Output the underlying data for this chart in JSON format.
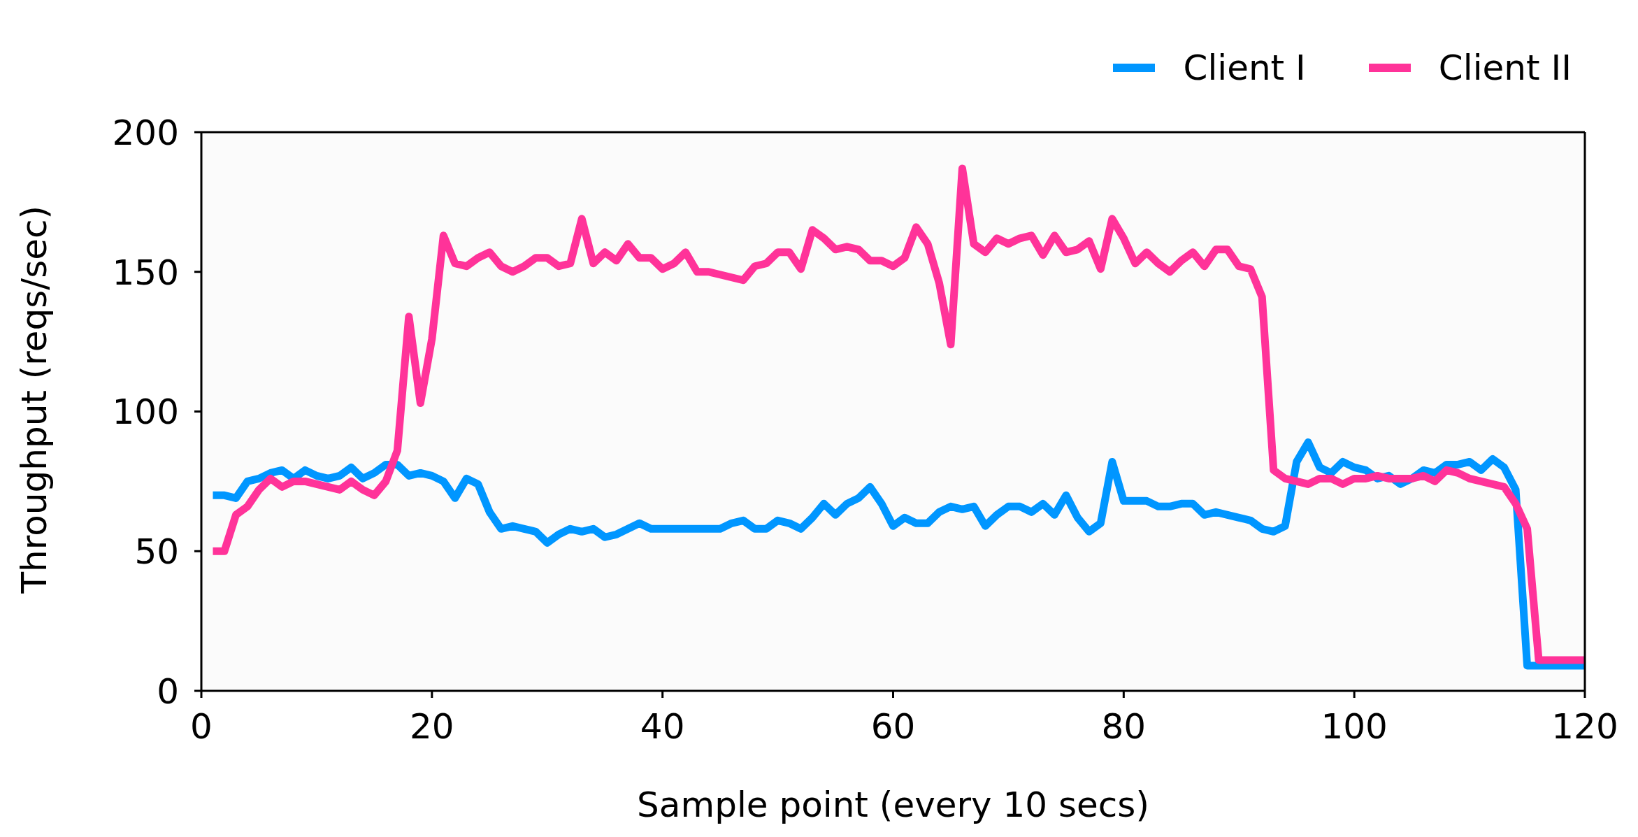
{
  "chart_data": {
    "type": "line",
    "xlabel": "Sample point (every 10 secs)",
    "ylabel": "Throughput (reqs/sec)",
    "x": [
      1,
      2,
      3,
      4,
      5,
      6,
      7,
      8,
      9,
      10,
      11,
      12,
      13,
      14,
      15,
      16,
      17,
      18,
      19,
      20,
      21,
      22,
      23,
      24,
      25,
      26,
      27,
      28,
      29,
      30,
      31,
      32,
      33,
      34,
      35,
      36,
      37,
      38,
      39,
      40,
      41,
      42,
      43,
      44,
      45,
      46,
      47,
      48,
      49,
      50,
      51,
      52,
      53,
      54,
      55,
      56,
      57,
      58,
      59,
      60,
      61,
      62,
      63,
      64,
      65,
      66,
      67,
      68,
      69,
      70,
      71,
      72,
      73,
      74,
      75,
      76,
      77,
      78,
      79,
      80,
      81,
      82,
      83,
      84,
      85,
      86,
      87,
      88,
      89,
      90,
      91,
      92,
      93,
      94,
      95,
      96,
      97,
      98,
      99,
      100,
      101,
      102,
      103,
      104,
      105,
      106,
      107,
      108,
      109,
      110,
      111,
      112,
      113,
      114,
      115,
      116,
      117,
      118,
      119,
      120
    ],
    "series": [
      {
        "name": "Client I",
        "color": "#0096ff",
        "values": [
          70,
          70,
          69,
          75,
          76,
          78,
          79,
          76,
          79,
          77,
          76,
          77,
          80,
          76,
          78,
          81,
          81,
          77,
          78,
          77,
          75,
          69,
          76,
          74,
          64,
          58,
          59,
          58,
          57,
          53,
          56,
          58,
          57,
          58,
          55,
          56,
          58,
          60,
          58,
          58,
          58,
          58,
          58,
          58,
          58,
          60,
          61,
          58,
          58,
          61,
          60,
          58,
          62,
          67,
          63,
          67,
          69,
          73,
          67,
          59,
          62,
          60,
          60,
          64,
          66,
          65,
          66,
          59,
          63,
          66,
          66,
          64,
          67,
          63,
          70,
          62,
          57,
          60,
          82,
          68,
          68,
          68,
          66,
          66,
          67,
          67,
          63,
          64,
          63,
          62,
          61,
          58,
          57,
          59,
          82,
          89,
          80,
          78,
          82,
          80,
          79,
          76,
          77,
          74,
          76,
          79,
          78,
          81,
          81,
          82,
          79,
          83,
          80,
          72,
          9,
          9,
          9,
          9,
          9,
          9
        ]
      },
      {
        "name": "Client II",
        "color": "#ff3399",
        "values": [
          50,
          50,
          63,
          66,
          72,
          76,
          73,
          75,
          75,
          74,
          73,
          72,
          75,
          72,
          70,
          75,
          86,
          134,
          103,
          126,
          163,
          153,
          152,
          155,
          157,
          152,
          150,
          152,
          155,
          155,
          152,
          153,
          169,
          153,
          157,
          154,
          160,
          155,
          155,
          151,
          153,
          157,
          150,
          150,
          149,
          148,
          147,
          152,
          153,
          157,
          157,
          151,
          165,
          162,
          158,
          159,
          158,
          154,
          154,
          152,
          155,
          166,
          160,
          146,
          124,
          187,
          160,
          157,
          162,
          160,
          162,
          163,
          156,
          163,
          157,
          158,
          161,
          151,
          169,
          162,
          153,
          157,
          153,
          150,
          154,
          157,
          152,
          158,
          158,
          152,
          151,
          141,
          79,
          76,
          75,
          74,
          76,
          76,
          74,
          76,
          76,
          77,
          76,
          76,
          76,
          77,
          75,
          79,
          78,
          76,
          75,
          74,
          73,
          67,
          58,
          11,
          11,
          11,
          11,
          11
        ]
      }
    ],
    "xlim": [
      0,
      120
    ],
    "xticks": [
      0,
      20,
      40,
      60,
      80,
      100,
      120
    ],
    "ylim": [
      0,
      200
    ],
    "yticks": [
      0,
      50,
      100,
      150,
      200
    ],
    "grid": false,
    "legend": "top right",
    "marker": "none",
    "line_style": "solid"
  }
}
